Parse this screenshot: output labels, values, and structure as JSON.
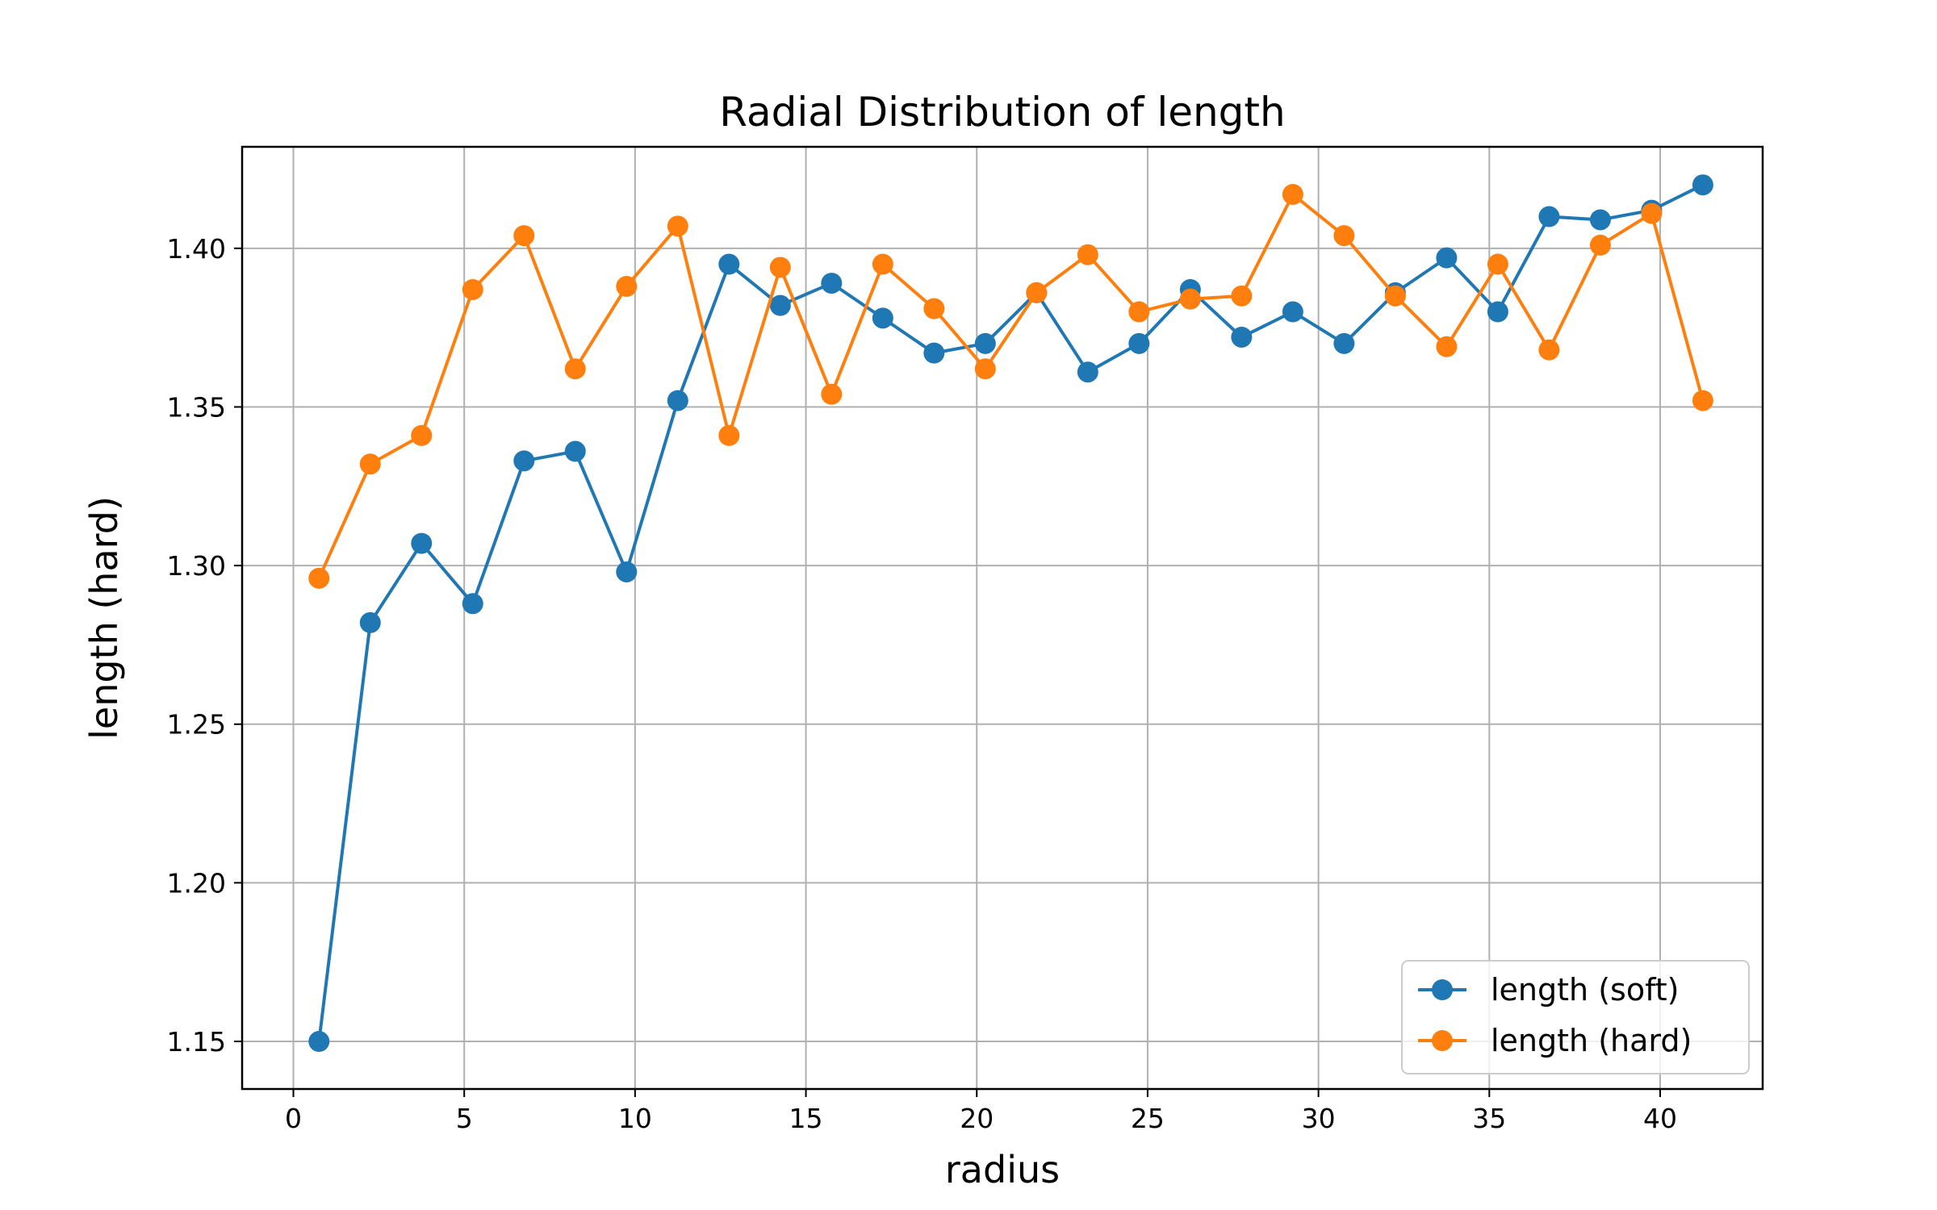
{
  "chart_data": {
    "type": "line",
    "title": "Radial Distribution of length",
    "xlabel": "radius",
    "ylabel": "length (hard)",
    "xlim": [
      -1.5,
      43
    ],
    "ylim": [
      1.135,
      1.432
    ],
    "xticks": [
      0,
      5,
      10,
      15,
      20,
      25,
      30,
      35,
      40
    ],
    "xtick_labels": [
      "0",
      "5",
      "10",
      "15",
      "20",
      "25",
      "30",
      "35",
      "40"
    ],
    "yticks": [
      1.15,
      1.2,
      1.25,
      1.3,
      1.35,
      1.4
    ],
    "ytick_labels": [
      "1.15",
      "1.20",
      "1.25",
      "1.30",
      "1.35",
      "1.40"
    ],
    "grid": true,
    "legend_position": "lower-right",
    "x": [
      0.75,
      2.25,
      3.75,
      5.25,
      6.75,
      8.25,
      9.75,
      11.25,
      12.75,
      14.25,
      15.75,
      17.25,
      18.75,
      20.25,
      21.75,
      23.25,
      24.75,
      26.25,
      27.75,
      29.25,
      30.75,
      32.25,
      33.75,
      35.25,
      36.75,
      38.25,
      39.75,
      41.25
    ],
    "series": [
      {
        "name": "length (soft)",
        "color": "#1f77b4",
        "values": [
          1.15,
          1.282,
          1.307,
          1.288,
          1.333,
          1.336,
          1.298,
          1.352,
          1.395,
          1.382,
          1.389,
          1.378,
          1.367,
          1.37,
          1.386,
          1.361,
          1.37,
          1.387,
          1.372,
          1.38,
          1.37,
          1.386,
          1.397,
          1.38,
          1.41,
          1.409,
          1.412,
          1.42
        ]
      },
      {
        "name": "length (hard)",
        "color": "#ff7f0e",
        "values": [
          1.296,
          1.332,
          1.341,
          1.387,
          1.404,
          1.362,
          1.388,
          1.407,
          1.341,
          1.394,
          1.354,
          1.395,
          1.381,
          1.362,
          1.386,
          1.398,
          1.38,
          1.384,
          1.385,
          1.417,
          1.404,
          1.385,
          1.369,
          1.395,
          1.368,
          1.401,
          1.411,
          1.352
        ]
      }
    ]
  }
}
